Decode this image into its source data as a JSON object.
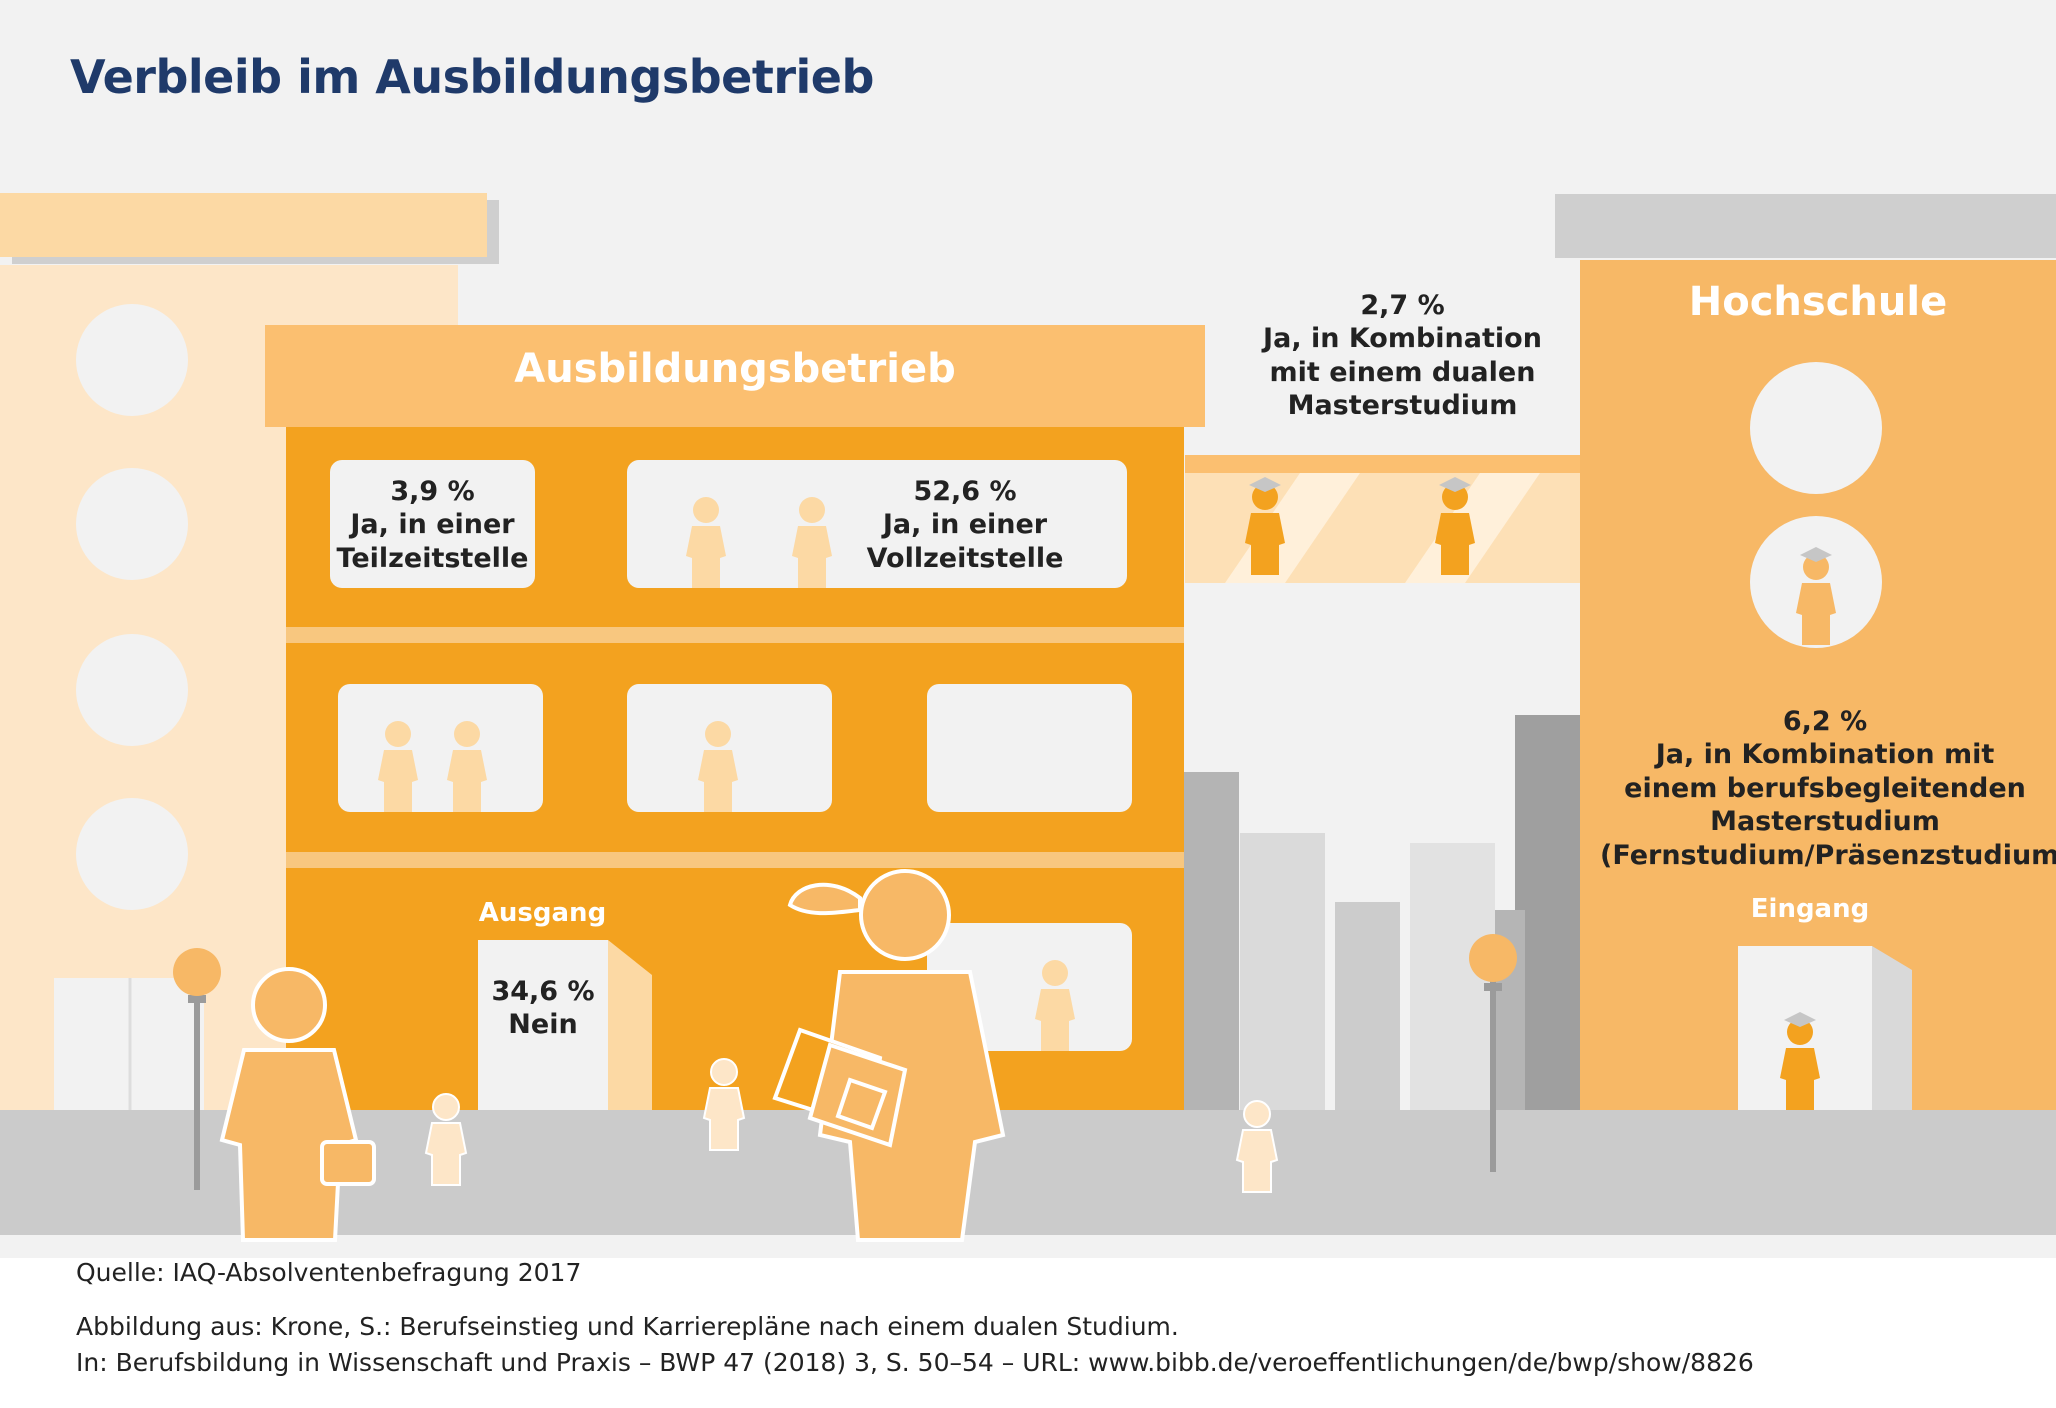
{
  "title": "Verbleib im Ausbildungsbetrieb",
  "colors": {
    "dark_orange": "#f3a21f",
    "mid_orange": "#f7b866",
    "light_orange": "#fcddb2",
    "pale_orange": "#fde6c8",
    "grey": "#cbcbcb",
    "title_blue": "#1f3a6a"
  },
  "company": {
    "name": "Ausbildungsbetrieb",
    "exit_label": "Ausgang"
  },
  "university": {
    "name": "Hochschule",
    "entrance_label": "Eingang"
  },
  "outcomes": {
    "part_time": {
      "value": "3,9 %",
      "line1": "Ja, in einer",
      "line2": "Teilzeitstelle"
    },
    "full_time": {
      "value": "52,6 %",
      "line1": "Ja, in einer",
      "line2": "Vollzeitstelle"
    },
    "no": {
      "value": "34,6 %",
      "label": "Nein"
    },
    "dual_master": {
      "value": "2,7 %",
      "line1": "Ja, in Kombination",
      "line2": "mit einem dualen",
      "line3": "Masterstudium"
    },
    "extra_master": {
      "value": "6,2 %",
      "line1": "Ja, in Kombination mit",
      "line2": "einem berufsbegleitenden",
      "line3": "Masterstudium",
      "line4": "(Fernstudium/Präsenzstudium)"
    }
  },
  "source": {
    "line1": "Quelle: IAQ-Absolventenbefragung 2017",
    "line2": "Abbildung aus: Krone, S.: Berufseinstieg und Karrierepläne nach einem dualen Studium.",
    "line3": "In: Berufsbildung in Wissenschaft und Praxis – BWP 47 (2018) 3, S. 50–54 – URL: www.bibb.de/veroeffentlichungen/de/bwp/show/8826"
  }
}
